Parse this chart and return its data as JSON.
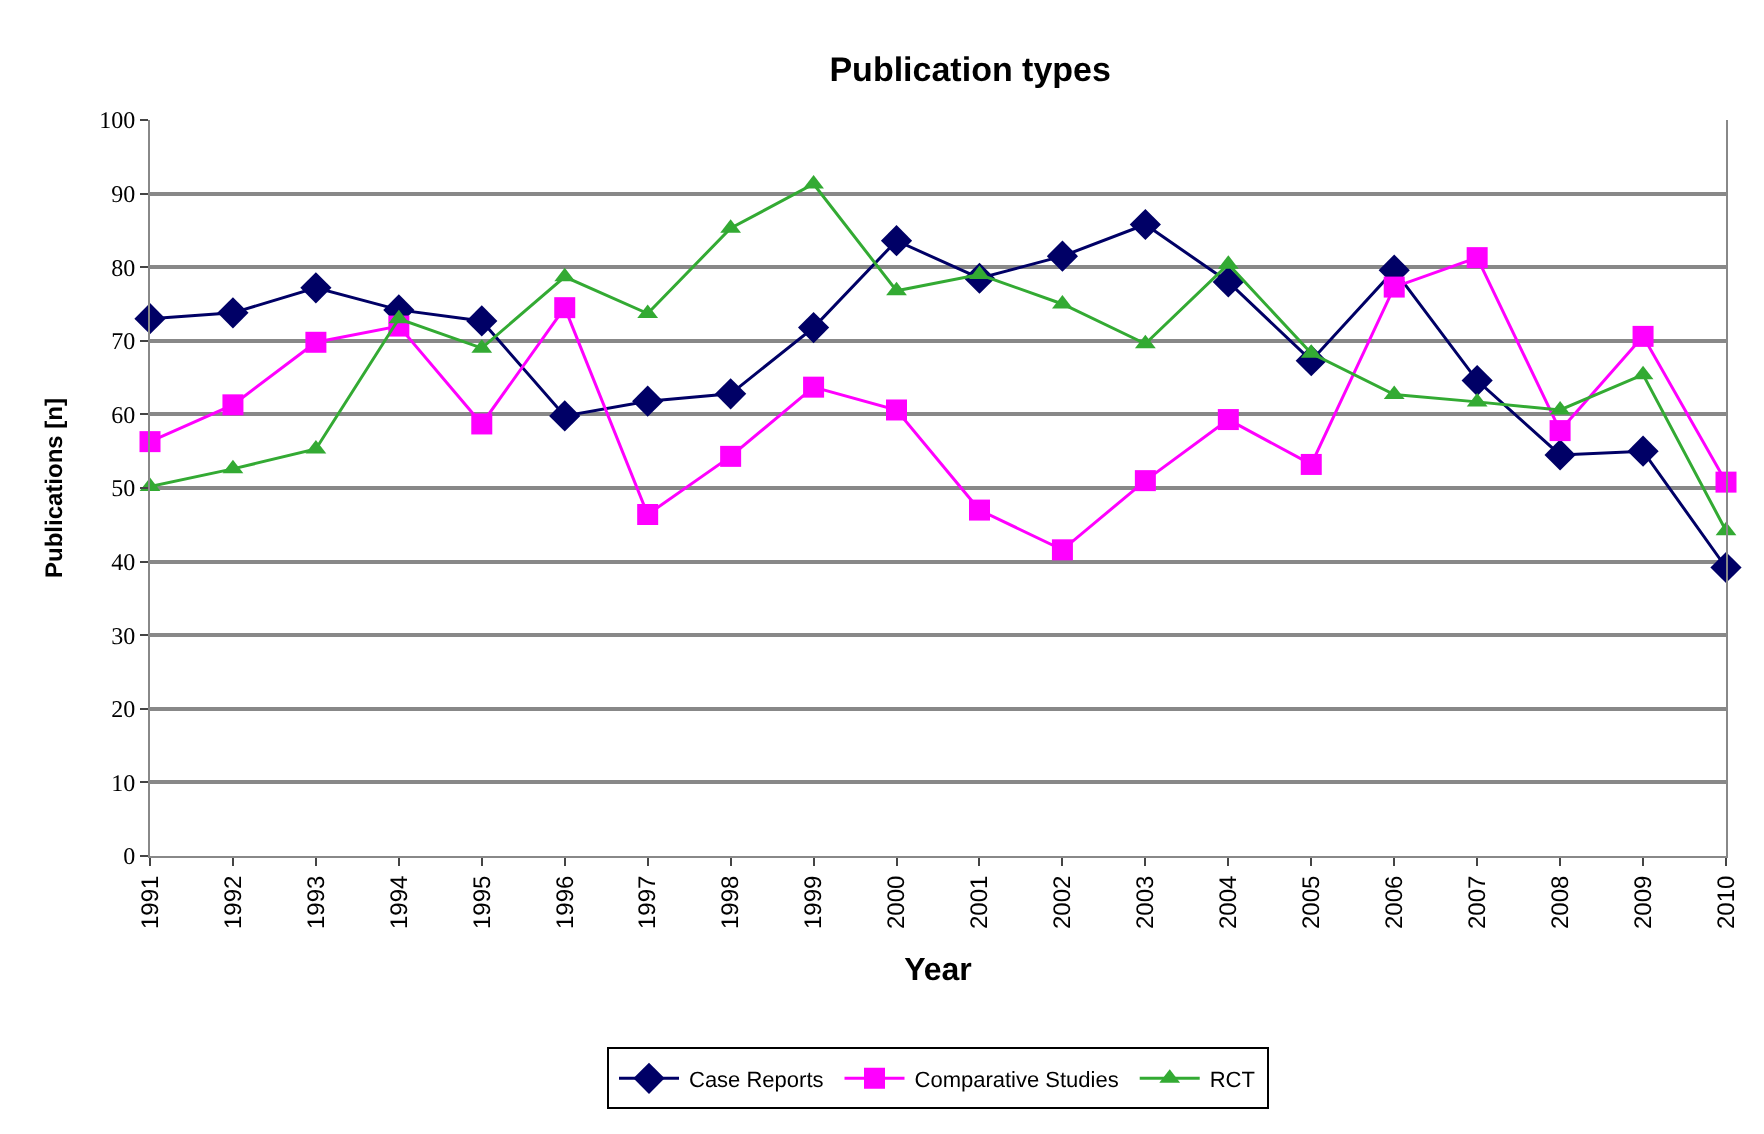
{
  "chart_data": {
    "type": "line",
    "title": "Publication types",
    "xlabel": "Year",
    "ylabel": "Publications [n]",
    "categories": [
      "1991",
      "1992",
      "1993",
      "1994",
      "1995",
      "1996",
      "1997",
      "1998",
      "1999",
      "2000",
      "2001",
      "2002",
      "2003",
      "2004",
      "2005",
      "2006",
      "2007",
      "2008",
      "2009",
      "2010"
    ],
    "series": [
      {
        "name": "Case Reports",
        "color": "#000066",
        "marker": "diamond",
        "values": [
          73,
          73.8,
          77.2,
          74.2,
          72.7,
          59.8,
          61.8,
          62.8,
          71.8,
          83.6,
          78.5,
          81.5,
          85.8,
          78,
          67.3,
          79.6,
          64.6,
          54.5,
          55,
          39.2
        ]
      },
      {
        "name": "Comparative Studies",
        "color": "#ff00ff",
        "marker": "square",
        "values": [
          56.3,
          61.3,
          69.8,
          72,
          58.7,
          74.5,
          46.4,
          54.3,
          63.7,
          60.6,
          47,
          41.6,
          51,
          59.3,
          53.2,
          77.3,
          81.3,
          57.8,
          70.6,
          50.8
        ]
      },
      {
        "name": "RCT",
        "color": "#33aa33",
        "marker": "triangle",
        "values": [
          50.2,
          52.6,
          55.3,
          73,
          69,
          78.7,
          73.7,
          85.3,
          91.3,
          76.8,
          79,
          75,
          69.6,
          80.4,
          68.3,
          62.7,
          61.7,
          60.6,
          65.4,
          44.2
        ]
      }
    ],
    "ylim": [
      0,
      100
    ],
    "yticks": [
      0,
      10,
      20,
      30,
      40,
      50,
      60,
      70,
      80,
      90,
      100
    ],
    "grid": "y",
    "legend": "bottom",
    "line_style": "solid"
  }
}
